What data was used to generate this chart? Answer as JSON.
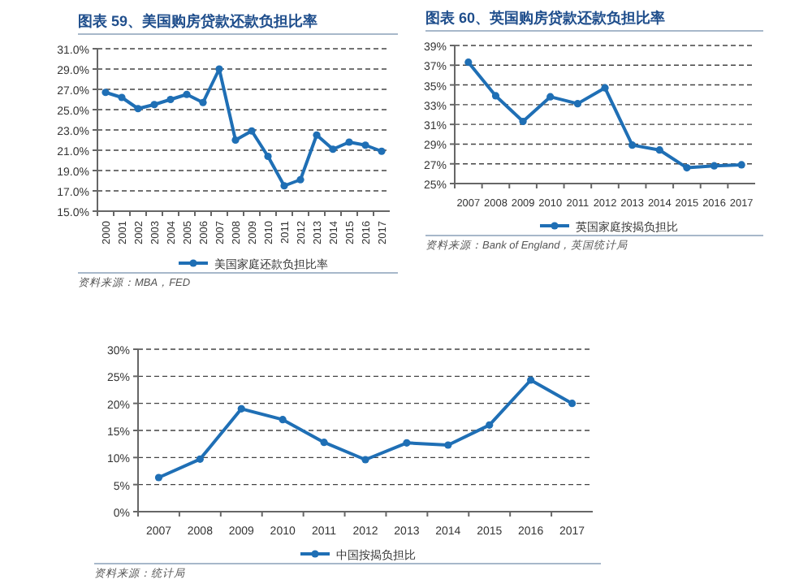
{
  "chart_data": [
    {
      "type": "line",
      "title": "图表 59、美国购房贷款还款负担比率",
      "categories": [
        "2000",
        "2001",
        "2002",
        "2003",
        "2004",
        "2005",
        "2006",
        "2007",
        "2008",
        "2009",
        "2010",
        "2011",
        "2012",
        "2013",
        "2014",
        "2015",
        "2016",
        "2017"
      ],
      "series": [
        {
          "name": "美国家庭还款负担比率",
          "color": "#1f6fb5",
          "values": [
            26.7,
            26.2,
            25.1,
            25.5,
            26.0,
            26.5,
            25.7,
            29.0,
            22.0,
            22.9,
            20.4,
            17.5,
            18.1,
            22.5,
            21.1,
            21.8,
            21.5,
            20.9
          ]
        }
      ],
      "ylim": [
        15,
        31
      ],
      "yticks": [
        {
          "value": 15,
          "label": "15.0%"
        },
        {
          "value": 17,
          "label": "17.0%"
        },
        {
          "value": 19,
          "label": "19.0%"
        },
        {
          "value": 21,
          "label": "21.0%"
        },
        {
          "value": 23,
          "label": "23.0%"
        },
        {
          "value": 25,
          "label": "25.0%"
        },
        {
          "value": 27,
          "label": "27.0%"
        },
        {
          "value": 29,
          "label": "29.0%"
        },
        {
          "value": 31,
          "label": "31.0%"
        }
      ],
      "grid": "y",
      "legend": "bottom",
      "marker": "circle",
      "line_style": "solid",
      "annotations": [
        "资料来源：MBA，FED"
      ]
    },
    {
      "type": "line",
      "title": "图表 60、英国购房贷款还款负担比率",
      "categories": [
        "2007",
        "2008",
        "2009",
        "2010",
        "2011",
        "2012",
        "2013",
        "2014",
        "2015",
        "2016",
        "2017"
      ],
      "series": [
        {
          "name": "英国家庭按揭负担比",
          "color": "#1f6fb5",
          "values": [
            37.3,
            33.9,
            31.3,
            33.8,
            33.1,
            34.7,
            28.9,
            28.4,
            26.6,
            26.8,
            26.9
          ]
        }
      ],
      "ylim": [
        25,
        39
      ],
      "yticks": [
        {
          "value": 25,
          "label": "25%"
        },
        {
          "value": 27,
          "label": "27%"
        },
        {
          "value": 29,
          "label": "29%"
        },
        {
          "value": 31,
          "label": "31%"
        },
        {
          "value": 33,
          "label": "33%"
        },
        {
          "value": 35,
          "label": "35%"
        },
        {
          "value": 37,
          "label": "37%"
        },
        {
          "value": 39,
          "label": "39%"
        }
      ],
      "grid": "y",
      "legend": "bottom",
      "marker": "circle",
      "line_style": "solid",
      "annotations": [
        "资料来源：Bank of England，英国统计局"
      ]
    },
    {
      "type": "line",
      "categories": [
        "2007",
        "2008",
        "2009",
        "2010",
        "2011",
        "2012",
        "2013",
        "2014",
        "2015",
        "2016",
        "2017"
      ],
      "series": [
        {
          "name": "中国按揭负担比",
          "color": "#1f6fb5",
          "values": [
            6.3,
            9.7,
            19.0,
            17.0,
            12.8,
            9.6,
            12.7,
            12.3,
            16.0,
            24.3,
            20.0
          ]
        }
      ],
      "ylim": [
        0,
        30
      ],
      "yticks": [
        {
          "value": 0,
          "label": "0%"
        },
        {
          "value": 5,
          "label": "5%"
        },
        {
          "value": 10,
          "label": "10%"
        },
        {
          "value": 15,
          "label": "15%"
        },
        {
          "value": 20,
          "label": "20%"
        },
        {
          "value": 25,
          "label": "25%"
        },
        {
          "value": 30,
          "label": "30%"
        }
      ],
      "grid": "y",
      "legend": "bottom",
      "marker": "circle",
      "line_style": "solid",
      "annotations": [
        "资料来源：统计局"
      ]
    }
  ]
}
